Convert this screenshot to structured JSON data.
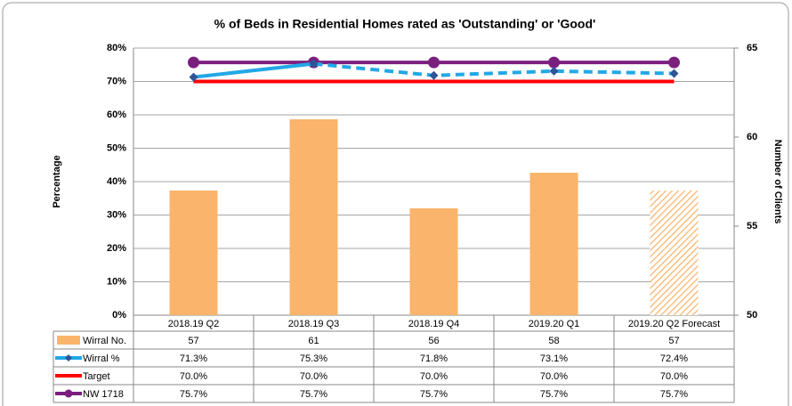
{
  "chart_data": {
    "type": "bar_line_table",
    "title": "% of Beds in Residential Homes rated as 'Outstanding' or 'Good'",
    "y_label": "Percentage",
    "y2_label": "Number of Clients",
    "categories": [
      "2018.19 Q2",
      "2018.19 Q3",
      "2018.19 Q4",
      "2019.20 Q1",
      "2019.20 Q2 Forecast"
    ],
    "ylim": [
      0,
      80
    ],
    "yticks": [
      {
        "value": 0,
        "label": "0%"
      },
      {
        "value": 10,
        "label": "10%"
      },
      {
        "value": 20,
        "label": "20%"
      },
      {
        "value": 30,
        "label": "30%"
      },
      {
        "value": 40,
        "label": "40%"
      },
      {
        "value": 50,
        "label": "50%"
      },
      {
        "value": 60,
        "label": "60%"
      },
      {
        "value": 70,
        "label": "70%"
      },
      {
        "value": 80,
        "label": "80%"
      }
    ],
    "y2lim": [
      50,
      65
    ],
    "y2ticks": [
      50,
      55,
      60,
      65
    ],
    "grid": true,
    "series": [
      {
        "name": "Wirral No.",
        "kind": "bar",
        "axis": "y2",
        "color": "#fbb46b",
        "hatched_index": 4,
        "values": [
          57,
          61,
          56,
          58,
          57
        ]
      },
      {
        "name": "Wirral %",
        "kind": "line",
        "color": "#22a8e6",
        "marker": "diamond",
        "marker_color": "#2f5597",
        "dashed_from": 1,
        "values": [
          71.3,
          75.3,
          71.8,
          73.1,
          72.4
        ],
        "value_labels": [
          "71.3%",
          "75.3%",
          "71.8%",
          "73.1%",
          "72.4%"
        ]
      },
      {
        "name": "Target",
        "kind": "line",
        "color": "#ff0000",
        "values": [
          70,
          70,
          70,
          70,
          70
        ],
        "value_labels": [
          "70.0%",
          "70.0%",
          "70.0%",
          "70.0%",
          "70.0%"
        ]
      },
      {
        "name": "NW 1718",
        "kind": "line",
        "color": "#7b1f7f",
        "marker": "circle",
        "marker_color": "#7b1f7f",
        "values": [
          75.7,
          75.7,
          75.7,
          75.7,
          75.7
        ],
        "value_labels": [
          "75.7%",
          "75.7%",
          "75.7%",
          "75.7%",
          "75.7%"
        ]
      }
    ]
  }
}
